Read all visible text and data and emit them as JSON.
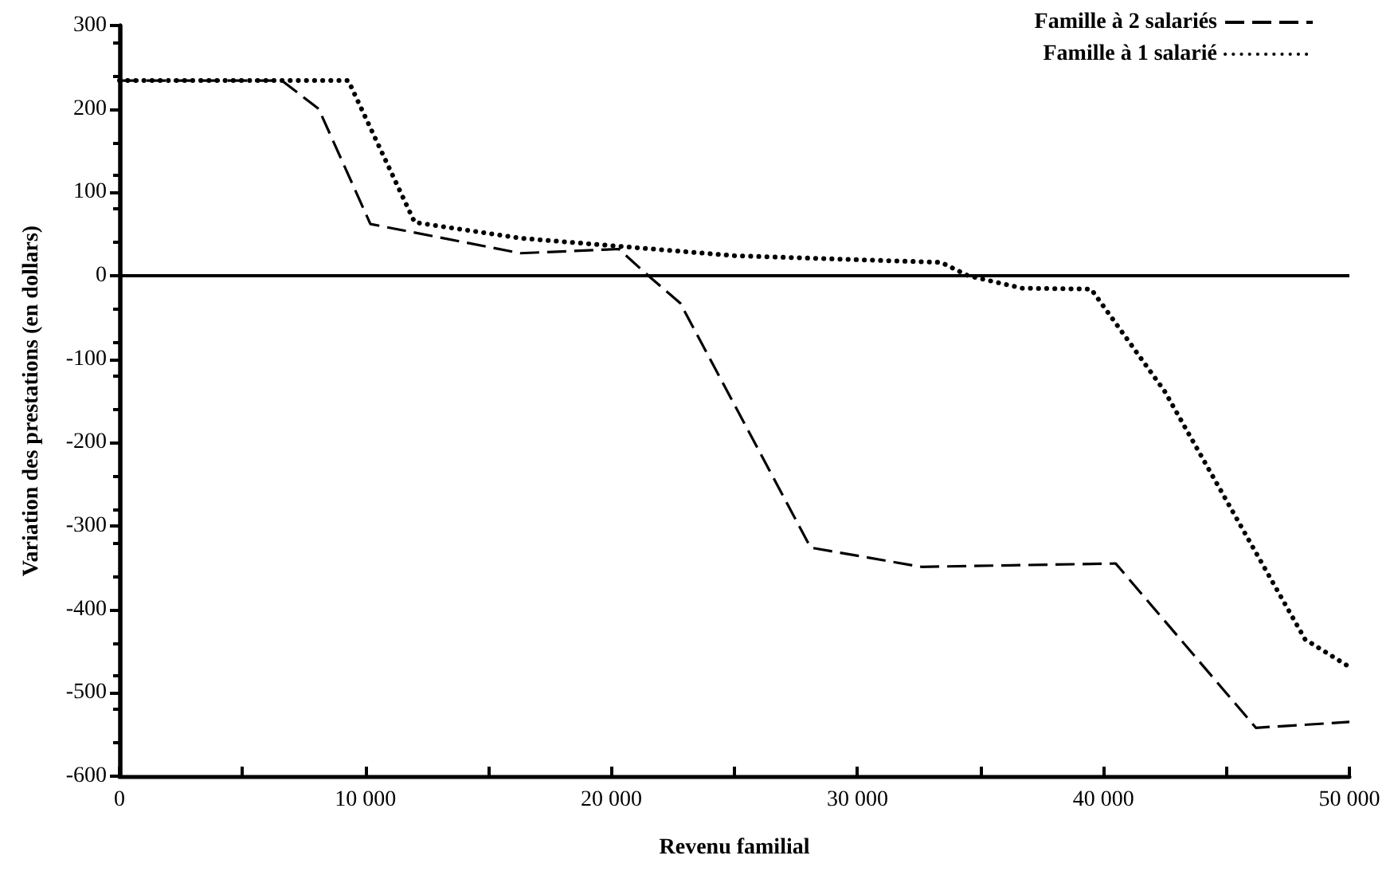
{
  "chart_data": {
    "type": "line",
    "xlabel": "Revenu familial",
    "ylabel": "Variation des prestations (en dollars)",
    "xlim": [
      0,
      50000
    ],
    "ylim": [
      -600,
      300
    ],
    "xticks": [
      {
        "value": 0,
        "label": "0"
      },
      {
        "value": 5000,
        "label": null
      },
      {
        "value": 10000,
        "label": "10 000"
      },
      {
        "value": 15000,
        "label": null
      },
      {
        "value": 20000,
        "label": "20 000"
      },
      {
        "value": 25000,
        "label": null
      },
      {
        "value": 30000,
        "label": "30 000"
      },
      {
        "value": 35000,
        "label": null
      },
      {
        "value": 40000,
        "label": "40 000"
      },
      {
        "value": 45000,
        "label": null
      },
      {
        "value": 50000,
        "label": "50 000"
      }
    ],
    "yticks": [
      -600,
      -500,
      -400,
      -300,
      -200,
      -100,
      0,
      100,
      200,
      300
    ],
    "grid": false,
    "legend": "top right",
    "marker": "none",
    "ref_lines": [
      {
        "axis": "y",
        "value": 0,
        "color": "#000000",
        "line_style": "solid"
      }
    ],
    "series": [
      {
        "name": "Famille à 2 salariés",
        "color": "#000000",
        "line_style": "dashed",
        "x": [
          0,
          6600,
          8100,
          10200,
          16300,
          20300,
          21500,
          22800,
          28100,
          32600,
          40500,
          46200,
          50000
        ],
        "values": [
          234,
          234,
          200,
          62,
          27,
          32,
          0,
          -33,
          -326,
          -349,
          -345,
          -542,
          -535
        ]
      },
      {
        "name": "Famille à 1 salarié",
        "color": "#000000",
        "line_style": "dotted",
        "x": [
          0,
          9300,
          12000,
          16300,
          25000,
          33400,
          34500,
          36700,
          39500,
          42500,
          46200,
          48200,
          50000
        ],
        "values": [
          234,
          234,
          64,
          45,
          24,
          16,
          0,
          -15,
          -16,
          -139,
          -332,
          -436,
          -469
        ]
      }
    ]
  }
}
